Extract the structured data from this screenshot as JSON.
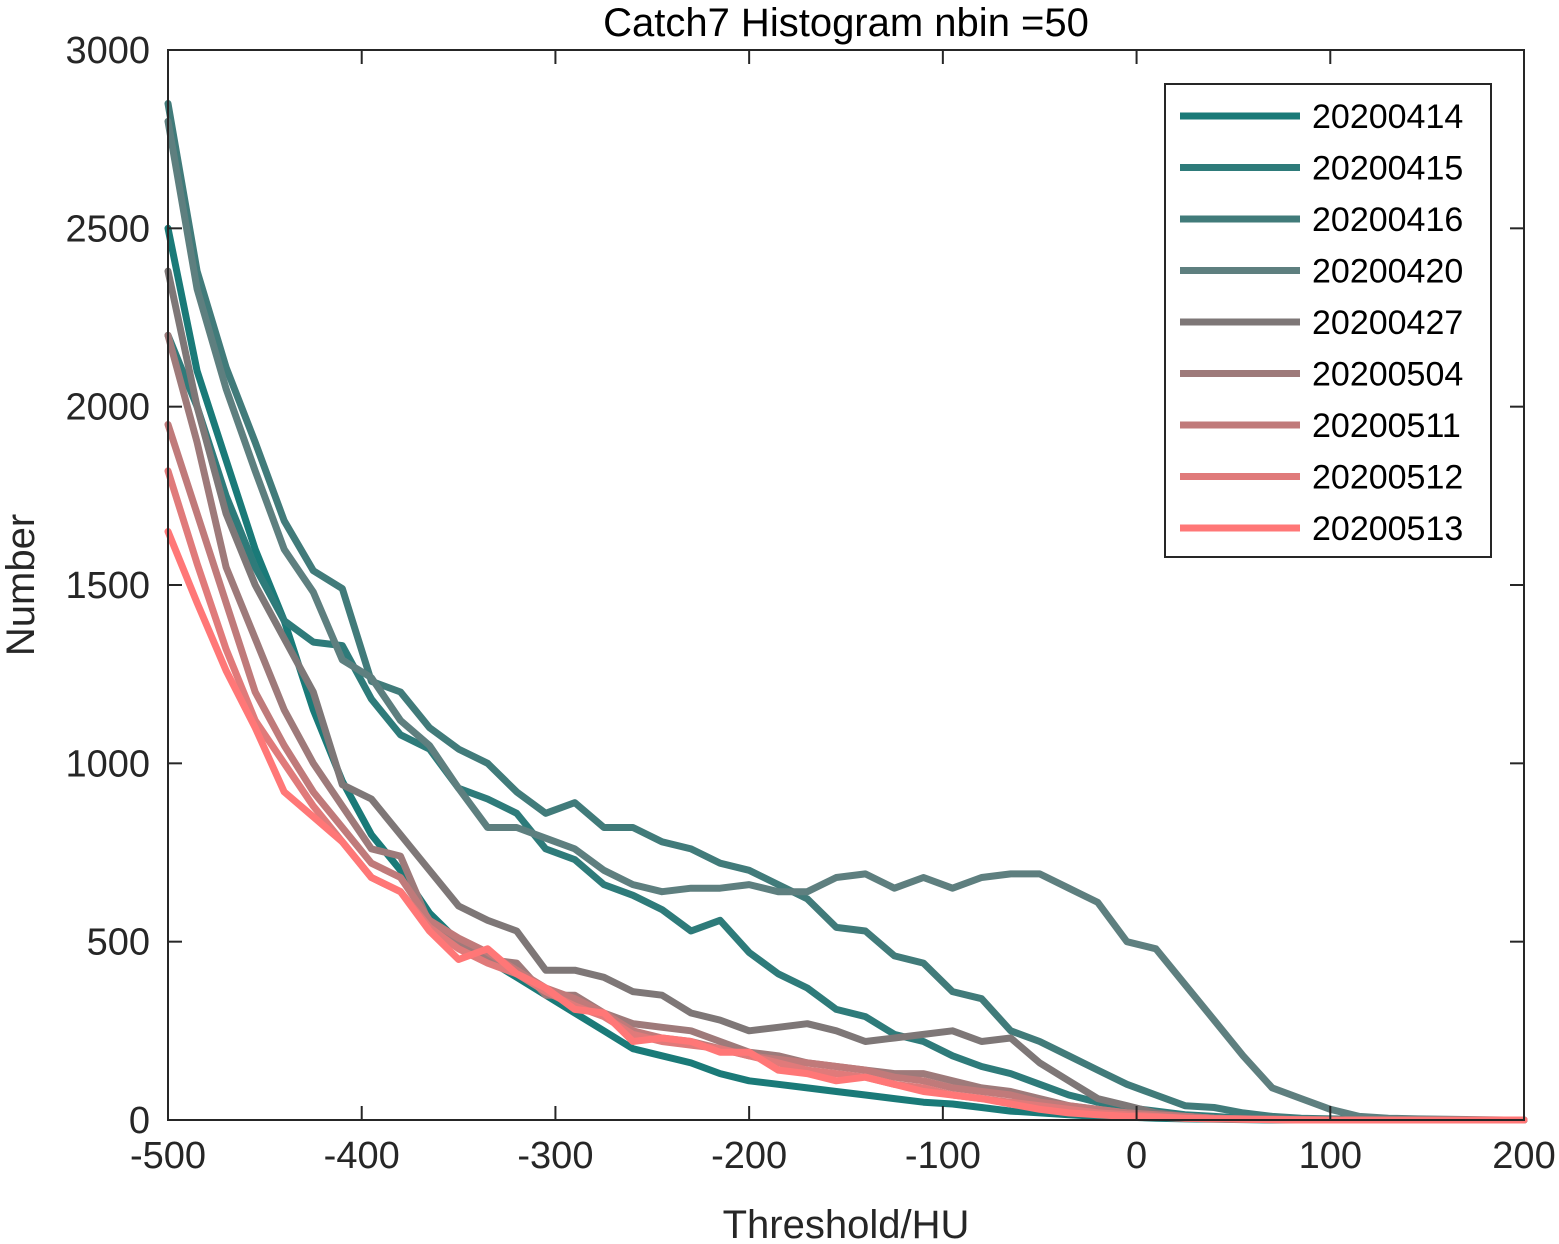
{
  "chart_data": {
    "type": "line",
    "title": "Catch7  Histogram nbin =50",
    "xlabel": "Threshold/HU",
    "ylabel": "Number",
    "xlim": [
      -500,
      200
    ],
    "ylim": [
      0,
      3000
    ],
    "xticks": [
      -500,
      -400,
      -300,
      -200,
      -100,
      0,
      100,
      200
    ],
    "yticks": [
      0,
      500,
      1000,
      1500,
      2000,
      2500,
      3000
    ],
    "grid": false,
    "legend_position": "top-right",
    "series": [
      {
        "name": "20200414",
        "color": "#1a7a78",
        "x": [
          -500,
          -485,
          -470,
          -455,
          -440,
          -425,
          -410,
          -395,
          -380,
          -365,
          -350,
          -335,
          -320,
          -305,
          -290,
          -275,
          -260,
          -245,
          -230,
          -215,
          -200,
          -185,
          -170,
          -155,
          -140,
          -125,
          -110,
          -95,
          -80,
          -65,
          -50,
          -35,
          -20,
          -5,
          10,
          25,
          40,
          55,
          70,
          85,
          100,
          115,
          130,
          145,
          160,
          175,
          190,
          200
        ],
        "y": [
          2500,
          2100,
          1850,
          1600,
          1400,
          1150,
          950,
          800,
          700,
          580,
          500,
          450,
          400,
          350,
          300,
          250,
          200,
          180,
          160,
          130,
          110,
          100,
          90,
          80,
          70,
          60,
          50,
          45,
          35,
          25,
          20,
          15,
          10,
          8,
          5,
          3,
          2,
          1,
          0,
          0,
          0,
          0,
          0,
          0,
          0,
          0,
          0,
          0
        ]
      },
      {
        "name": "20200415",
        "color": "#2e7b7a",
        "x": [
          -500,
          -485,
          -470,
          -455,
          -440,
          -425,
          -410,
          -395,
          -380,
          -365,
          -350,
          -335,
          -320,
          -305,
          -290,
          -275,
          -260,
          -245,
          -230,
          -215,
          -200,
          -185,
          -170,
          -155,
          -140,
          -125,
          -110,
          -95,
          -80,
          -65,
          -50,
          -35,
          -20,
          -5,
          10,
          25,
          40,
          55,
          70,
          85,
          100,
          115,
          130,
          145,
          160,
          175,
          190,
          200
        ],
        "y": [
          2200,
          2000,
          1750,
          1550,
          1400,
          1340,
          1330,
          1180,
          1080,
          1040,
          930,
          900,
          860,
          760,
          730,
          660,
          630,
          590,
          530,
          560,
          470,
          410,
          370,
          310,
          290,
          240,
          220,
          180,
          150,
          130,
          100,
          70,
          50,
          35,
          25,
          15,
          10,
          5,
          3,
          2,
          1,
          0,
          0,
          0,
          0,
          0,
          0,
          0
        ]
      },
      {
        "name": "20200416",
        "color": "#417b7a",
        "x": [
          -500,
          -485,
          -470,
          -455,
          -440,
          -425,
          -410,
          -395,
          -380,
          -365,
          -350,
          -335,
          -320,
          -305,
          -290,
          -275,
          -260,
          -245,
          -230,
          -215,
          -200,
          -185,
          -170,
          -155,
          -140,
          -125,
          -110,
          -95,
          -80,
          -65,
          -50,
          -35,
          -20,
          -5,
          10,
          25,
          40,
          55,
          70,
          85,
          100,
          115,
          130,
          145,
          160,
          175,
          190,
          200
        ],
        "y": [
          2850,
          2380,
          2110,
          1900,
          1680,
          1540,
          1490,
          1230,
          1200,
          1100,
          1040,
          1000,
          920,
          860,
          890,
          820,
          820,
          780,
          760,
          720,
          700,
          660,
          620,
          540,
          530,
          460,
          440,
          360,
          340,
          250,
          220,
          180,
          140,
          100,
          70,
          40,
          35,
          20,
          10,
          5,
          3,
          2,
          1,
          0,
          0,
          0,
          0,
          0
        ]
      },
      {
        "name": "20200420",
        "color": "#5e7f7f",
        "x": [
          -500,
          -485,
          -470,
          -455,
          -440,
          -425,
          -410,
          -395,
          -380,
          -365,
          -350,
          -335,
          -320,
          -305,
          -290,
          -275,
          -260,
          -245,
          -230,
          -215,
          -200,
          -185,
          -170,
          -155,
          -140,
          -125,
          -110,
          -95,
          -80,
          -65,
          -50,
          -35,
          -20,
          -5,
          10,
          25,
          40,
          55,
          70,
          85,
          100,
          115,
          130,
          145,
          160,
          175,
          190,
          200
        ],
        "y": [
          2800,
          2330,
          2050,
          1820,
          1600,
          1480,
          1290,
          1240,
          1120,
          1050,
          930,
          820,
          820,
          790,
          760,
          700,
          660,
          640,
          650,
          650,
          660,
          640,
          640,
          680,
          690,
          650,
          680,
          650,
          680,
          690,
          690,
          650,
          610,
          500,
          480,
          380,
          280,
          180,
          90,
          60,
          30,
          10,
          5,
          3,
          2,
          1,
          0,
          0
        ]
      },
      {
        "name": "20200427",
        "color": "#7e7777",
        "x": [
          -500,
          -485,
          -470,
          -455,
          -440,
          -425,
          -410,
          -395,
          -380,
          -365,
          -350,
          -335,
          -320,
          -305,
          -290,
          -275,
          -260,
          -245,
          -230,
          -215,
          -200,
          -185,
          -170,
          -155,
          -140,
          -125,
          -110,
          -95,
          -80,
          -65,
          -50,
          -35,
          -20,
          -5,
          10,
          25,
          40,
          55,
          70,
          85,
          100,
          115,
          130,
          145,
          160,
          175,
          190,
          200
        ],
        "y": [
          2380,
          2000,
          1700,
          1500,
          1350,
          1200,
          940,
          900,
          800,
          700,
          600,
          560,
          530,
          420,
          420,
          400,
          360,
          350,
          300,
          280,
          250,
          260,
          270,
          250,
          220,
          230,
          240,
          250,
          220,
          230,
          160,
          110,
          60,
          40,
          20,
          10,
          5,
          3,
          2,
          1,
          0,
          0,
          0,
          0,
          0,
          0,
          0,
          0
        ]
      },
      {
        "name": "20200504",
        "color": "#9e7a7a",
        "x": [
          -500,
          -485,
          -470,
          -455,
          -440,
          -425,
          -410,
          -395,
          -380,
          -365,
          -350,
          -335,
          -320,
          -305,
          -290,
          -275,
          -260,
          -245,
          -230,
          -215,
          -200,
          -185,
          -170,
          -155,
          -140,
          -125,
          -110,
          -95,
          -80,
          -65,
          -50,
          -35,
          -20,
          -5,
          10,
          25,
          40,
          55,
          70,
          85,
          100,
          115,
          130,
          145,
          160,
          175,
          190,
          200
        ],
        "y": [
          2200,
          1900,
          1550,
          1350,
          1150,
          1000,
          880,
          760,
          740,
          550,
          500,
          450,
          440,
          350,
          350,
          300,
          270,
          260,
          250,
          220,
          190,
          180,
          160,
          150,
          140,
          130,
          130,
          110,
          90,
          80,
          60,
          40,
          30,
          20,
          15,
          10,
          5,
          3,
          2,
          1,
          0,
          0,
          0,
          0,
          0,
          0,
          0,
          0
        ]
      },
      {
        "name": "20200511",
        "color": "#c07a7a",
        "x": [
          -500,
          -485,
          -470,
          -455,
          -440,
          -425,
          -410,
          -395,
          -380,
          -365,
          -350,
          -335,
          -320,
          -305,
          -290,
          -275,
          -260,
          -245,
          -230,
          -215,
          -200,
          -185,
          -170,
          -155,
          -140,
          -125,
          -110,
          -95,
          -80,
          -65,
          -50,
          -35,
          -20,
          -5,
          10,
          25,
          40,
          55,
          70,
          85,
          100,
          115,
          130,
          145,
          160,
          175,
          190,
          200
        ],
        "y": [
          1950,
          1700,
          1450,
          1200,
          1050,
          920,
          820,
          720,
          680,
          560,
          510,
          470,
          420,
          370,
          340,
          300,
          250,
          230,
          220,
          200,
          180,
          170,
          160,
          150,
          140,
          120,
          110,
          90,
          80,
          70,
          50,
          40,
          30,
          20,
          15,
          10,
          5,
          3,
          2,
          1,
          0,
          0,
          0,
          0,
          0,
          0,
          0,
          0
        ]
      },
      {
        "name": "20200512",
        "color": "#e07a7a",
        "x": [
          -500,
          -485,
          -470,
          -455,
          -440,
          -425,
          -410,
          -395,
          -380,
          -365,
          -350,
          -335,
          -320,
          -305,
          -290,
          -275,
          -260,
          -245,
          -230,
          -215,
          -200,
          -185,
          -170,
          -155,
          -140,
          -125,
          -110,
          -95,
          -80,
          -65,
          -50,
          -35,
          -20,
          -5,
          10,
          25,
          40,
          55,
          70,
          85,
          100,
          115,
          130,
          145,
          160,
          175,
          190,
          200
        ],
        "y": [
          1820,
          1560,
          1320,
          1120,
          1000,
          880,
          780,
          680,
          640,
          540,
          480,
          440,
          410,
          360,
          320,
          290,
          240,
          220,
          210,
          200,
          180,
          160,
          140,
          130,
          120,
          100,
          90,
          70,
          60,
          50,
          40,
          30,
          20,
          15,
          10,
          5,
          3,
          2,
          1,
          0,
          0,
          0,
          0,
          0,
          0,
          0,
          0,
          0
        ]
      },
      {
        "name": "20200513",
        "color": "#ff7777",
        "x": [
          -500,
          -485,
          -470,
          -455,
          -440,
          -425,
          -410,
          -395,
          -380,
          -365,
          -350,
          -335,
          -320,
          -305,
          -290,
          -275,
          -260,
          -245,
          -230,
          -215,
          -200,
          -185,
          -170,
          -155,
          -140,
          -125,
          -110,
          -95,
          -80,
          -65,
          -50,
          -35,
          -20,
          -5,
          10,
          25,
          40,
          55,
          70,
          85,
          100,
          115,
          130,
          145,
          160,
          175,
          190,
          200
        ],
        "y": [
          1650,
          1450,
          1260,
          1100,
          920,
          850,
          780,
          680,
          640,
          530,
          450,
          480,
          410,
          370,
          310,
          300,
          220,
          230,
          220,
          190,
          190,
          140,
          130,
          110,
          120,
          100,
          80,
          70,
          60,
          45,
          30,
          20,
          15,
          10,
          8,
          5,
          3,
          2,
          1,
          0,
          0,
          0,
          0,
          0,
          0,
          0,
          0,
          0
        ]
      }
    ]
  }
}
